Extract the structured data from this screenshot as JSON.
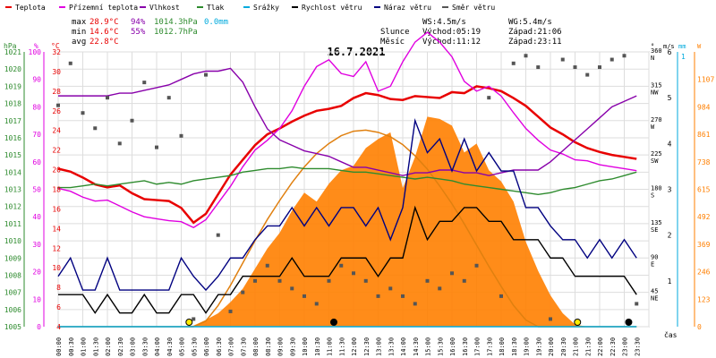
{
  "legend": [
    {
      "label": "Teplota",
      "color": "#e80000"
    },
    {
      "label": "Přízemní teplota",
      "color": "#e000e0"
    },
    {
      "label": "Vlhkost",
      "color": "#8800aa"
    },
    {
      "label": "Tlak",
      "color": "#2e8b2e"
    },
    {
      "label": "Srážky",
      "color": "#00aadd"
    },
    {
      "label": "Rychlost větru",
      "color": "#000000"
    },
    {
      "label": "Náraz větru",
      "color": "#000080"
    },
    {
      "label": "Směr větru",
      "color": "#555555"
    }
  ],
  "stats": {
    "max": {
      "label": "max",
      "temp": "28.9°C",
      "hum": "94%",
      "press": "1014.3hPa",
      "rain": "0.0mm"
    },
    "min": {
      "label": "min",
      "temp": "14.6°C",
      "hum": "55%",
      "press": "1012.7hPa"
    },
    "avg": {
      "label": "avg",
      "temp": "22.8°C"
    }
  },
  "wind_info": {
    "ws": "WS:4.5m/s",
    "wg": "WG:5.4m/s"
  },
  "sun": {
    "label": "Slunce",
    "rise": "Východ:05:19",
    "set": "Západ:21:06"
  },
  "moon": {
    "label": "Měsíc",
    "rise": "Východ:11:12",
    "set": "Západ:23:11"
  },
  "chart_data": {
    "type": "line",
    "title": "16.7.2021",
    "xlabel": "čas",
    "x_ticks": [
      "00:00",
      "00:30",
      "01:00",
      "01:30",
      "02:00",
      "02:30",
      "03:00",
      "03:30",
      "04:00",
      "04:30",
      "05:00",
      "05:30",
      "06:00",
      "06:30",
      "07:00",
      "07:30",
      "08:00",
      "08:30",
      "09:00",
      "09:30",
      "10:00",
      "10:30",
      "11:00",
      "11:30",
      "12:00",
      "12:30",
      "13:00",
      "13:30",
      "14:00",
      "14:30",
      "15:00",
      "15:30",
      "16:00",
      "16:30",
      "17:00",
      "17:30",
      "18:00",
      "18:30",
      "19:00",
      "19:30",
      "20:00",
      "20:30",
      "21:00",
      "21:30",
      "22:00",
      "22:30",
      "23:00",
      "23:30"
    ],
    "axes": {
      "pressure": {
        "unit": "hPa",
        "min": 1005,
        "max": 1021,
        "ticks": [
          "1005",
          "1006",
          "1007",
          "1008",
          "1009",
          "1010",
          "1011",
          "1012",
          "1013",
          "1014",
          "1015",
          "1016",
          "1017",
          "1018",
          "1019",
          "1020",
          "1021"
        ]
      },
      "humidity": {
        "unit": "%",
        "min": 0,
        "max": 100,
        "ticks": [
          "0",
          "10",
          "20",
          "30",
          "40",
          "50",
          "60",
          "70",
          "80",
          "90",
          "100"
        ]
      },
      "temperature": {
        "unit": "°C",
        "min": 4,
        "max": 32,
        "ticks": [
          "4",
          "6",
          "8",
          "10",
          "12",
          "14",
          "16",
          "18",
          "20",
          "22",
          "24",
          "26",
          "28",
          "30",
          "32"
        ]
      },
      "direction": {
        "unit": "°",
        "min": 0,
        "max": 360,
        "ticks": [
          {
            "deg": 360,
            "label": "360",
            "dir": "N"
          },
          {
            "deg": 315,
            "label": "315",
            "dir": "NW"
          },
          {
            "deg": 270,
            "label": "270",
            "dir": "W"
          },
          {
            "deg": 225,
            "label": "225",
            "dir": "SW"
          },
          {
            "deg": 180,
            "label": "180",
            "dir": "S"
          },
          {
            "deg": 135,
            "label": "135",
            "dir": "SE"
          },
          {
            "deg": 90,
            "label": "90",
            "dir": "E"
          },
          {
            "deg": 45,
            "label": "45",
            "dir": "NE"
          }
        ]
      },
      "wind": {
        "unit": "m/s",
        "min": 0,
        "max": 6,
        "ticks": [
          "1",
          "2",
          "3",
          "4",
          "5",
          "6"
        ]
      },
      "rain": {
        "unit": "mm",
        "ticks": [
          "1"
        ]
      },
      "radiation": {
        "unit": "W",
        "min": 0,
        "max": 1230,
        "ticks": [
          "0",
          "123",
          "246",
          "369",
          "492",
          "615",
          "738",
          "861",
          "984",
          "1107"
        ]
      }
    },
    "series": [
      {
        "name": "Teplota",
        "axis": "temperature",
        "color": "#e80000",
        "values": [
          20.1,
          19.8,
          19.2,
          18.5,
          18.2,
          18.4,
          17.6,
          17.0,
          16.9,
          16.8,
          16.1,
          14.6,
          15.5,
          17.5,
          19.5,
          21.0,
          22.5,
          23.6,
          24.2,
          24.9,
          25.5,
          26.0,
          26.2,
          26.5,
          27.3,
          27.8,
          27.6,
          27.2,
          27.1,
          27.5,
          27.4,
          27.3,
          27.9,
          27.8,
          28.5,
          28.3,
          28.0,
          27.3,
          26.5,
          25.4,
          24.3,
          23.6,
          22.8,
          22.2,
          21.8,
          21.5,
          21.3,
          21.1
        ]
      },
      {
        "name": "Přízemní teplota",
        "axis": "temperature",
        "color": "#e000e0",
        "values": [
          18.1,
          17.8,
          17.2,
          16.8,
          16.9,
          16.3,
          15.7,
          15.2,
          15.0,
          14.8,
          14.7,
          14.1,
          14.9,
          16.6,
          18.3,
          20.3,
          22.0,
          23.0,
          24.2,
          26.0,
          28.5,
          30.5,
          31.2,
          29.8,
          29.5,
          31.0,
          28.0,
          28.5,
          31.0,
          33.0,
          34.0,
          33.0,
          31.5,
          29.0,
          28.0,
          28.5,
          27.5,
          25.8,
          24.2,
          23.0,
          22.0,
          21.6,
          21.0,
          20.9,
          20.5,
          20.3,
          20.1,
          19.9
        ]
      },
      {
        "name": "Vlhkost",
        "axis": "humidity",
        "color": "#8800aa",
        "values": [
          84,
          84,
          84,
          84,
          84,
          85,
          85,
          86,
          87,
          88,
          90,
          92,
          93,
          93,
          94,
          89,
          80,
          72,
          68,
          66,
          64,
          63,
          62,
          60,
          58,
          58,
          57,
          56,
          55,
          56,
          56,
          57,
          57,
          56,
          56,
          55,
          56,
          57,
          57,
          57,
          60,
          64,
          68,
          72,
          76,
          80,
          82,
          84
        ]
      },
      {
        "name": "Tlak",
        "axis": "pressure",
        "color": "#2e8b2e",
        "values": [
          1013.1,
          1013.1,
          1013.2,
          1013.3,
          1013.2,
          1013.3,
          1013.4,
          1013.5,
          1013.3,
          1013.4,
          1013.3,
          1013.5,
          1013.6,
          1013.7,
          1013.8,
          1014.0,
          1014.1,
          1014.2,
          1014.2,
          1014.3,
          1014.2,
          1014.2,
          1014.2,
          1014.1,
          1014.0,
          1014.0,
          1013.9,
          1013.8,
          1013.7,
          1013.6,
          1013.7,
          1013.6,
          1013.5,
          1013.3,
          1013.2,
          1013.1,
          1013.0,
          1012.9,
          1012.8,
          1012.7,
          1012.8,
          1013.0,
          1013.1,
          1013.3,
          1013.5,
          1013.6,
          1013.8,
          1014.0
        ]
      },
      {
        "name": "Rychlost větru",
        "axis": "wind",
        "color": "#000000",
        "values": [
          0.7,
          0.7,
          0.7,
          0.3,
          0.7,
          0.3,
          0.3,
          0.7,
          0.3,
          0.3,
          0.7,
          0.7,
          0.3,
          0.7,
          0.7,
          1.1,
          1.1,
          1.1,
          1.1,
          1.5,
          1.1,
          1.1,
          1.1,
          1.5,
          1.5,
          1.5,
          1.1,
          1.5,
          1.5,
          2.6,
          1.9,
          2.3,
          2.3,
          2.6,
          2.6,
          2.3,
          2.3,
          1.9,
          1.9,
          1.9,
          1.5,
          1.5,
          1.1,
          1.1,
          1.1,
          1.1,
          1.1,
          0.7
        ]
      },
      {
        "name": "Náraz větru",
        "axis": "wind",
        "color": "#000080",
        "values": [
          1.1,
          1.5,
          0.8,
          0.8,
          1.5,
          0.8,
          0.8,
          0.8,
          0.8,
          0.8,
          1.5,
          1.1,
          0.8,
          1.1,
          1.5,
          1.5,
          1.9,
          2.2,
          2.2,
          2.6,
          2.2,
          2.6,
          2.2,
          2.6,
          2.6,
          2.2,
          2.6,
          1.9,
          2.6,
          4.5,
          3.8,
          4.1,
          3.4,
          4.1,
          3.4,
          3.8,
          3.4,
          3.4,
          2.6,
          2.6,
          2.2,
          1.9,
          1.9,
          1.5,
          1.9,
          1.5,
          1.9,
          1.5
        ]
      },
      {
        "name": "Srážky",
        "axis": "rain",
        "color": "#00aadd",
        "values": [
          0,
          0,
          0,
          0,
          0,
          0,
          0,
          0,
          0,
          0,
          0,
          0,
          0,
          0,
          0,
          0,
          0,
          0,
          0,
          0,
          0,
          0,
          0,
          0,
          0,
          0,
          0,
          0,
          0,
          0,
          0,
          0,
          0,
          0,
          0,
          0,
          0,
          0,
          0,
          0,
          0,
          0,
          0,
          0,
          0,
          0,
          0,
          0
        ]
      },
      {
        "name": "Směr větru",
        "axis": "direction",
        "color": "#555555",
        "values": [
          290,
          345,
          280,
          260,
          300,
          240,
          270,
          320,
          235,
          300,
          250,
          10,
          330,
          120,
          20,
          45,
          60,
          80,
          60,
          50,
          40,
          30,
          60,
          80,
          70,
          60,
          40,
          50,
          40,
          30,
          60,
          50,
          70,
          60,
          80,
          300,
          40,
          345,
          355,
          340,
          10,
          350,
          340,
          330,
          340,
          350,
          355,
          30
        ]
      }
    ],
    "radiation": {
      "name": "Sluneční záření",
      "axis": "radiation",
      "color": "#ff7f00",
      "values": [
        0,
        0,
        0,
        0,
        0,
        0,
        0,
        0,
        0,
        0,
        0,
        5,
        30,
        60,
        110,
        170,
        260,
        350,
        420,
        520,
        600,
        560,
        640,
        700,
        720,
        800,
        840,
        870,
        620,
        760,
        940,
        930,
        900,
        780,
        820,
        700,
        650,
        560,
        380,
        250,
        140,
        60,
        10,
        0,
        0,
        0,
        0,
        0
      ],
      "theoretical": [
        0,
        0,
        0,
        0,
        0,
        0,
        0,
        0,
        0,
        0,
        0,
        0,
        25,
        95,
        185,
        285,
        385,
        480,
        565,
        645,
        715,
        775,
        820,
        855,
        875,
        880,
        870,
        850,
        815,
        765,
        705,
        630,
        550,
        460,
        365,
        270,
        180,
        95,
        30,
        0,
        0,
        0,
        0,
        0,
        0,
        0,
        0,
        0
      ]
    },
    "markers": [
      {
        "name": "sunrise",
        "hour": 5.32
      },
      {
        "name": "moonrise",
        "hour": 11.2
      },
      {
        "name": "sunset",
        "hour": 21.1
      },
      {
        "name": "moonset",
        "hour": 23.18
      }
    ]
  }
}
